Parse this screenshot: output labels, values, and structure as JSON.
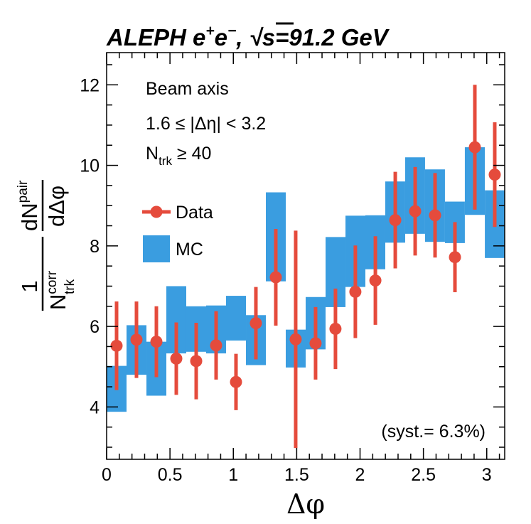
{
  "chart_data": {
    "type": "scatter",
    "title": "ALEPH e+e−, √s=91.2 GeV",
    "title_parts": {
      "experiment": "ALEPH",
      "beam": "e",
      "beam_sup1": "+",
      "beam_sup2": "−",
      "sqrt": "√",
      "energy": "s=91.2 GeV"
    },
    "xlabel": "Δφ",
    "ylabel": "1/N_trk^corr dN^pair/dΔφ",
    "ylabel_parts": {
      "one": "1",
      "n": "N",
      "n_sup": "corr",
      "n_sub": "trk",
      "dn": "dN",
      "dn_sup": "pair",
      "dphi": "dΔφ"
    },
    "xlim": [
      0,
      3.1416
    ],
    "ylim": [
      2.7,
      12.8
    ],
    "x_ticks": [
      0,
      0.5,
      1,
      1.5,
      2,
      2.5,
      3
    ],
    "x_tick_labels": [
      "0",
      "0.5",
      "1",
      "1.5",
      "2",
      "2.5",
      "3"
    ],
    "y_ticks": [
      4,
      6,
      8,
      10,
      12
    ],
    "y_tick_labels": [
      "4",
      "6",
      "8",
      "10",
      "12"
    ],
    "annotations": {
      "beam_axis": "Beam axis",
      "eta_range": "1.6 ≤ |Δη| < 3.2",
      "ntrk_n": "N",
      "ntrk_sub": "trk",
      "ntrk_rest": " ≥ 40",
      "syst": "(syst.= 6.3%)"
    },
    "legend": {
      "position": "left-middle",
      "entries": [
        {
          "label": "Data",
          "style": "marker-errorbar"
        },
        {
          "label": "MC",
          "style": "band"
        }
      ]
    },
    "colors": {
      "data": "#e54b3c",
      "mc": "#3a9de0"
    },
    "series": [
      {
        "name": "Data",
        "x": [
          0.0785,
          0.2356,
          0.3927,
          0.5498,
          0.7069,
          0.864,
          1.021,
          1.178,
          1.335,
          1.492,
          1.649,
          1.806,
          1.963,
          2.121,
          2.278,
          2.435,
          2.592,
          2.749,
          2.906,
          3.063
        ],
        "y": [
          5.52,
          5.67,
          5.62,
          5.2,
          5.14,
          5.53,
          4.62,
          6.08,
          7.22,
          5.68,
          5.58,
          5.94,
          6.86,
          7.14,
          8.64,
          8.86,
          8.76,
          7.72,
          10.45,
          9.77
        ],
        "y_err": [
          1.1,
          0.95,
          0.88,
          0.9,
          0.95,
          0.85,
          0.7,
          0.9,
          1.2,
          2.7,
          0.9,
          1.0,
          1.15,
          1.1,
          1.2,
          1.1,
          1.05,
          0.87,
          1.55,
          1.3
        ]
      },
      {
        "name": "MC",
        "x_low": [
          0.0,
          0.1571,
          0.3142,
          0.4712,
          0.6283,
          0.7854,
          0.9425,
          1.0996,
          1.2566,
          1.4137,
          1.5708,
          1.7279,
          1.885,
          2.042,
          2.199,
          2.356,
          2.513,
          2.67,
          2.827,
          2.985
        ],
        "x_high": [
          0.1571,
          0.3142,
          0.4712,
          0.6283,
          0.7854,
          0.9425,
          1.0996,
          1.2566,
          1.4137,
          1.5708,
          1.7279,
          1.885,
          2.042,
          2.199,
          2.356,
          2.513,
          2.67,
          2.827,
          2.985,
          3.1416
        ],
        "y_low": [
          3.88,
          4.8,
          4.28,
          5.33,
          5.37,
          5.33,
          5.65,
          5.04,
          7.12,
          4.98,
          5.43,
          6.48,
          6.98,
          7.42,
          8.08,
          8.3,
          8.1,
          8.07,
          8.77,
          7.7
        ],
        "y_high": [
          5.02,
          6.03,
          5.62,
          7.0,
          6.5,
          6.52,
          6.76,
          6.28,
          9.33,
          5.92,
          6.73,
          8.22,
          8.75,
          8.76,
          9.6,
          10.2,
          9.9,
          9.1,
          10.45,
          9.38
        ]
      }
    ]
  }
}
